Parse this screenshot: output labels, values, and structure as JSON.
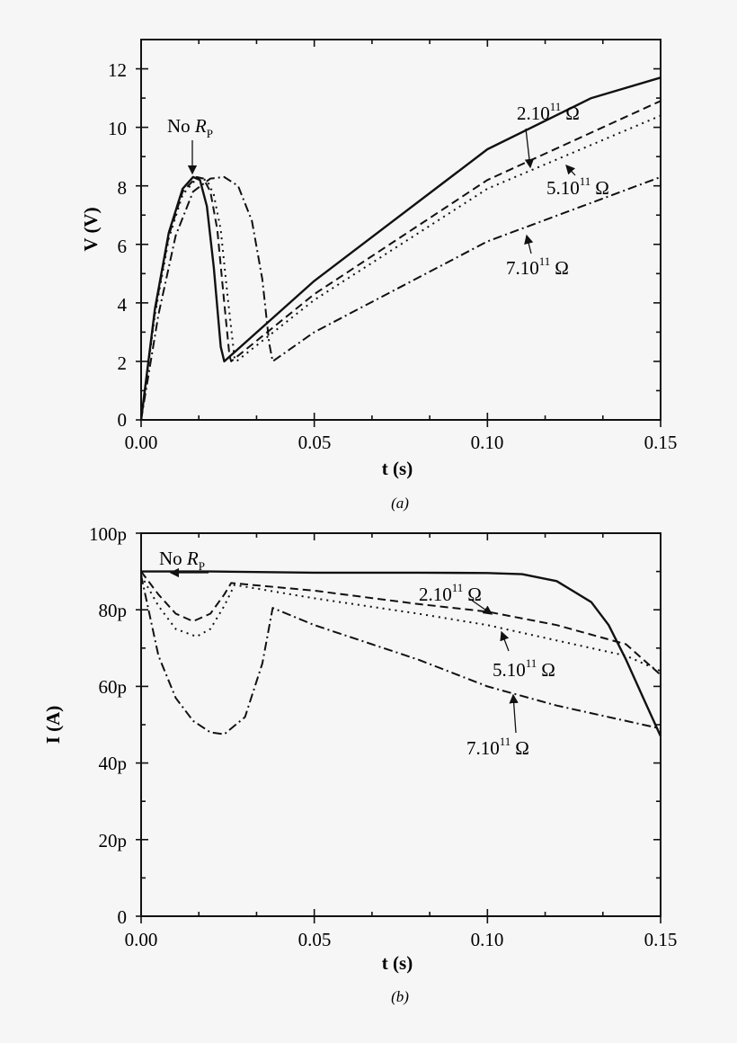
{
  "chart_data": [
    {
      "type": "line",
      "panel": "(a)",
      "caption": "(a)",
      "xlabel": "t (s)",
      "ylabel": "V (V)",
      "xlim": [
        0,
        0.15
      ],
      "ylim": [
        0,
        13
      ],
      "xticks": [
        "0.00",
        "0.05",
        "0.10",
        "0.15"
      ],
      "yticks": [
        "0",
        "2",
        "4",
        "6",
        "8",
        "10",
        "12"
      ],
      "annotations": [
        "No R_P",
        "2.10^11 Ω",
        "5.10^11 Ω",
        "7.10^11 Ω"
      ],
      "series": [
        {
          "name": "No R_P",
          "style": "solid",
          "x": [
            0,
            0.004,
            0.008,
            0.012,
            0.015,
            0.017,
            0.019,
            0.021,
            0.023,
            0.024,
            0.05,
            0.1,
            0.13,
            0.15
          ],
          "y": [
            0,
            3.8,
            6.4,
            7.9,
            8.3,
            8.2,
            7.3,
            5.2,
            2.5,
            2.0,
            4.75,
            9.25,
            11.0,
            11.7
          ]
        },
        {
          "name": "2.10^11 Ω",
          "style": "dashed",
          "x": [
            0,
            0.004,
            0.008,
            0.012,
            0.016,
            0.018,
            0.02,
            0.022,
            0.024,
            0.0255,
            0.026,
            0.05,
            0.1,
            0.15
          ],
          "y": [
            0,
            3.7,
            6.3,
            7.8,
            8.3,
            8.25,
            7.8,
            6.5,
            4.0,
            2.2,
            2.0,
            4.3,
            8.2,
            10.9
          ]
        },
        {
          "name": "5.10^11 Ω",
          "style": "dotted",
          "x": [
            0,
            0.004,
            0.008,
            0.012,
            0.016,
            0.019,
            0.021,
            0.023,
            0.025,
            0.027,
            0.0275,
            0.05,
            0.1,
            0.15
          ],
          "y": [
            0,
            3.6,
            6.2,
            7.7,
            8.25,
            8.2,
            7.7,
            6.5,
            4.2,
            2.1,
            2.0,
            4.1,
            7.9,
            10.4
          ]
        },
        {
          "name": "7.10^11 Ω",
          "style": "dash-dot",
          "x": [
            0,
            0.005,
            0.01,
            0.015,
            0.02,
            0.024,
            0.028,
            0.032,
            0.035,
            0.037,
            0.038,
            0.05,
            0.1,
            0.15
          ],
          "y": [
            0,
            3.6,
            6.3,
            7.8,
            8.25,
            8.3,
            8.0,
            6.8,
            4.8,
            2.6,
            2.0,
            3.0,
            6.1,
            8.3
          ]
        }
      ]
    },
    {
      "type": "line",
      "panel": "(b)",
      "caption": "(b)",
      "xlabel": "t (s)",
      "ylabel": "I (A)",
      "xlim": [
        0,
        0.15
      ],
      "ylim": [
        0,
        100
      ],
      "xticks": [
        "0.00",
        "0.05",
        "0.10",
        "0.15"
      ],
      "yticks": [
        "0",
        "20p",
        "40p",
        "60p",
        "80p",
        "100p"
      ],
      "annotations": [
        "No R_P",
        "2.10^11 Ω",
        "5.10^11 Ω",
        "7.10^11 Ω"
      ],
      "series": [
        {
          "name": "No R_P",
          "style": "solid",
          "x": [
            0,
            0.02,
            0.05,
            0.08,
            0.1,
            0.11,
            0.12,
            0.13,
            0.135,
            0.14,
            0.145,
            0.15
          ],
          "y": [
            90,
            90,
            89.7,
            89.7,
            89.6,
            89.3,
            87.5,
            82,
            76,
            67,
            57,
            47
          ]
        },
        {
          "name": "2.10^11 Ω",
          "style": "dashed",
          "x": [
            0,
            0.005,
            0.01,
            0.015,
            0.02,
            0.024,
            0.026,
            0.05,
            0.08,
            0.1,
            0.12,
            0.14,
            0.15
          ],
          "y": [
            90,
            84,
            79,
            77,
            79,
            84,
            87,
            85,
            81.5,
            79.5,
            76,
            71,
            63
          ]
        },
        {
          "name": "5.10^11 Ω",
          "style": "dotted",
          "x": [
            0,
            0.005,
            0.01,
            0.016,
            0.02,
            0.024,
            0.027,
            0.05,
            0.08,
            0.1,
            0.12,
            0.14,
            0.15
          ],
          "y": [
            89,
            81,
            75,
            73,
            75,
            81,
            86.5,
            83,
            79,
            76,
            72,
            68,
            64
          ]
        },
        {
          "name": "7.10^11 Ω",
          "style": "dash-dot",
          "x": [
            0,
            0.005,
            0.01,
            0.015,
            0.02,
            0.024,
            0.03,
            0.035,
            0.038,
            0.05,
            0.08,
            0.1,
            0.12,
            0.15
          ],
          "y": [
            89,
            68,
            57,
            51,
            48,
            47.5,
            52,
            66,
            80.5,
            76,
            67,
            60,
            55,
            49
          ]
        }
      ]
    }
  ],
  "labels": {
    "a": {
      "ylabel": "V (V)",
      "xlabel": "t (s)",
      "caption": "(a)",
      "yticks": [
        "0",
        "2",
        "4",
        "6",
        "8",
        "10",
        "12"
      ],
      "xticks": [
        "0.00",
        "0.05",
        "0.10",
        "0.15"
      ],
      "ann_norp": "No ",
      "ann_norp_r": "R",
      "ann_norp_sub": "P",
      "ann_2_base": "2.10",
      "ann_5_base": "5.10",
      "ann_7_base": "7.10",
      "ann_exp": "11",
      "ann_unit": "Ω"
    },
    "b": {
      "ylabel": "I (A)",
      "xlabel": "t (s)",
      "caption": "(b)",
      "yticks": [
        "0",
        "20p",
        "40p",
        "60p",
        "80p",
        "100p"
      ],
      "xticks": [
        "0.00",
        "0.05",
        "0.10",
        "0.15"
      ],
      "ann_norp": "No ",
      "ann_norp_r": "R",
      "ann_norp_sub": "P",
      "ann_2_base": "2.10",
      "ann_5_base": "5.10",
      "ann_7_base": "7.10",
      "ann_exp": "11",
      "ann_unit": "Ω"
    }
  }
}
